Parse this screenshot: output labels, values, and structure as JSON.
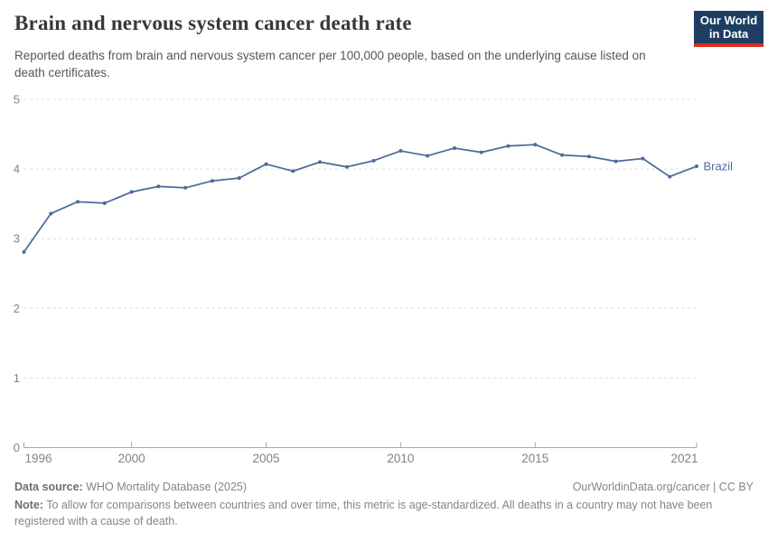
{
  "header": {
    "title": "Brain and nervous system cancer death rate",
    "subtitle": "Reported deaths from brain and nervous system cancer per 100,000 people, based on the underlying cause listed on death certificates.",
    "logo": {
      "line1": "Our World",
      "line2": "in Data",
      "bg_color": "#1d3d63",
      "accent_color": "#dc2b1c"
    }
  },
  "chart_data": {
    "type": "line",
    "title": "Brain and nervous system cancer death rate",
    "xlabel": "",
    "ylabel": "",
    "x": [
      1996,
      1997,
      1998,
      1999,
      2000,
      2001,
      2002,
      2003,
      2004,
      2005,
      2006,
      2007,
      2008,
      2009,
      2010,
      2011,
      2012,
      2013,
      2014,
      2015,
      2016,
      2017,
      2018,
      2019,
      2020,
      2021
    ],
    "series": [
      {
        "name": "Brazil",
        "color": "#4c6a9c",
        "values": [
          2.81,
          3.36,
          3.53,
          3.51,
          3.67,
          3.75,
          3.73,
          3.83,
          3.87,
          4.07,
          3.97,
          4.1,
          4.03,
          4.12,
          4.26,
          4.19,
          4.3,
          4.24,
          4.33,
          4.35,
          4.2,
          4.18,
          4.11,
          4.15,
          3.89,
          4.04
        ]
      }
    ],
    "ylim": [
      0,
      5
    ],
    "yticks": [
      0,
      1,
      2,
      3,
      4,
      5
    ],
    "xticks": [
      1996,
      2000,
      2005,
      2010,
      2015,
      2021
    ],
    "grid": "horizontal-dashed",
    "legend_position": "end-of-line",
    "gridline_color": "#dcdcdc",
    "axis_color": "#a8a8a8",
    "tick_label_color": "#838383"
  },
  "footer": {
    "source_label": "Data source:",
    "source_text": " WHO Mortality Database (2025)",
    "license_text": "OurWorldinData.org/cancer | CC BY",
    "note_label": "Note:",
    "note_text": " To allow for comparisons between countries and over time, this metric is age-standardized. All deaths in a country may not have been registered with a cause of death."
  }
}
